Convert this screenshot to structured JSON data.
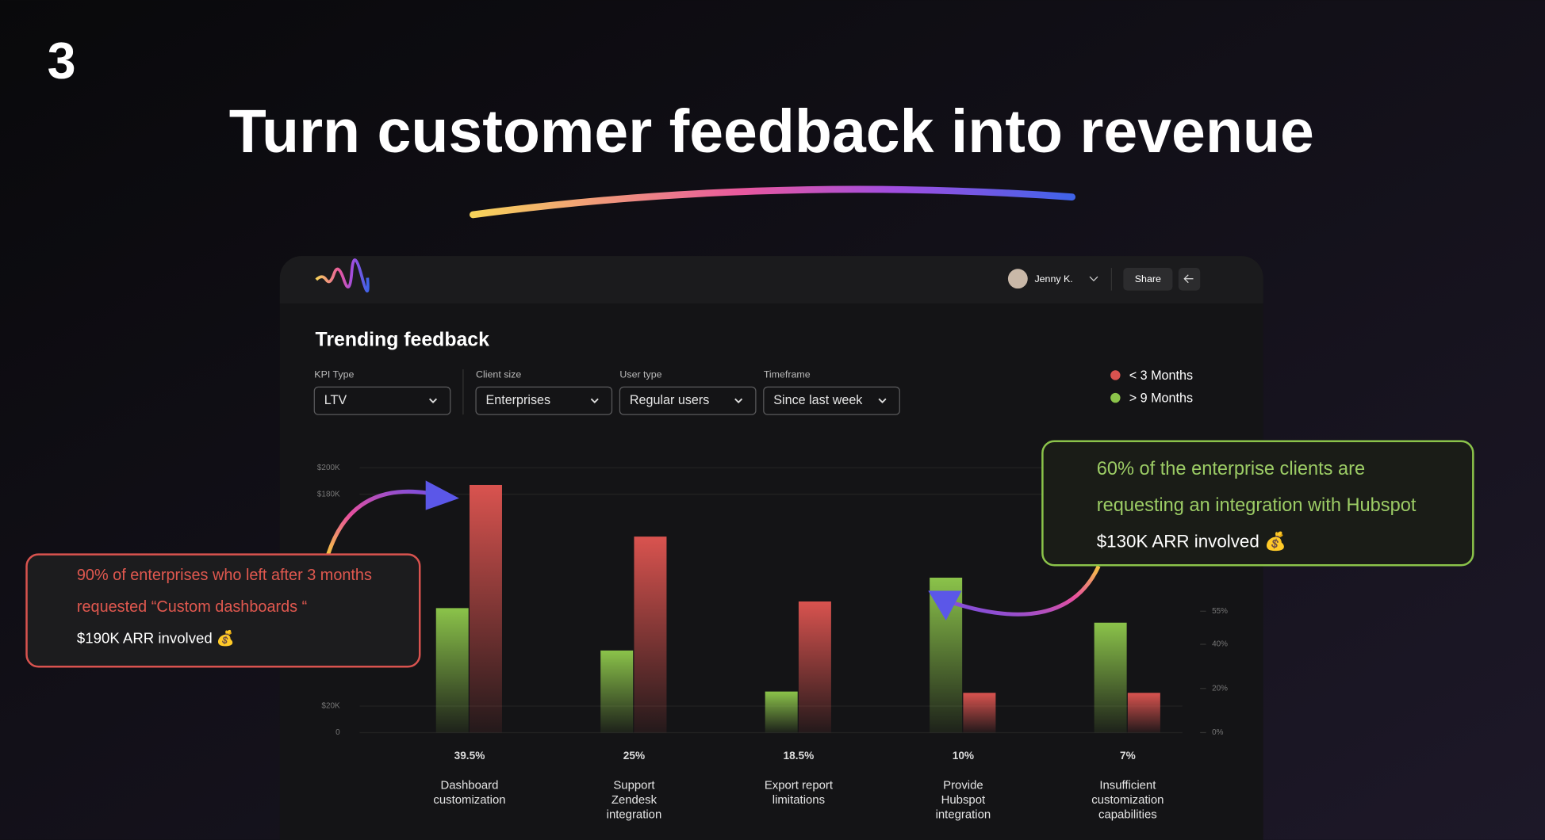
{
  "header": {
    "number": "3",
    "title": "Turn customer feedback into revenue"
  },
  "app": {
    "user": "Jenny K.",
    "share": "Share",
    "section_title": "Trending feedback",
    "filters": [
      {
        "label": "KPI Type",
        "value": "LTV"
      },
      {
        "label": "Client size",
        "value": "Enterprises"
      },
      {
        "label": "User type",
        "value": "Regular users"
      },
      {
        "label": "Timeframe",
        "value": "Since last week"
      }
    ]
  },
  "callouts": [
    {
      "lines": [
        "90% of enterprises who left after 3 months",
        "requested “Custom dashboards “"
      ],
      "detail": "$190K ARR involved 💰"
    },
    {
      "lines": [
        "60% of the enterprise clients are",
        "requesting an integration with Hubspot"
      ],
      "detail": "$130K ARR involved 💰"
    }
  ],
  "chart_data": {
    "type": "bar",
    "categories": [
      "Dashboard customization",
      "Support Zendesk integration",
      "Export report limitations",
      "Provide Hubspot integration",
      "Insufficient customization capabilities"
    ],
    "share_labels": [
      "39.5%",
      "25%",
      "18.5%",
      "10%",
      "7%"
    ],
    "series": [
      {
        "name": "< 3 Months",
        "color": "#d9534f",
        "values": [
          187000,
          148000,
          99000,
          30000,
          30000
        ]
      },
      {
        "name": "> 9 Months",
        "color": "#8bc34a",
        "values": [
          94000,
          62000,
          31000,
          117000,
          83000
        ]
      }
    ],
    "ylim": [
      0,
      200000
    ],
    "yticks": [
      {
        "value": 0,
        "label": "0"
      },
      {
        "value": 20000,
        "label": "$20K"
      },
      {
        "value": 180000,
        "label": "$180K"
      },
      {
        "value": 200000,
        "label": "$200K"
      }
    ],
    "y2lim": [
      0,
      120
    ],
    "y2ticks": [
      {
        "value": 0,
        "label": "0%"
      },
      {
        "value": 20,
        "label": "20%"
      },
      {
        "value": 40,
        "label": "40%"
      },
      {
        "value": 55,
        "label": "55%"
      }
    ],
    "grid": true
  }
}
